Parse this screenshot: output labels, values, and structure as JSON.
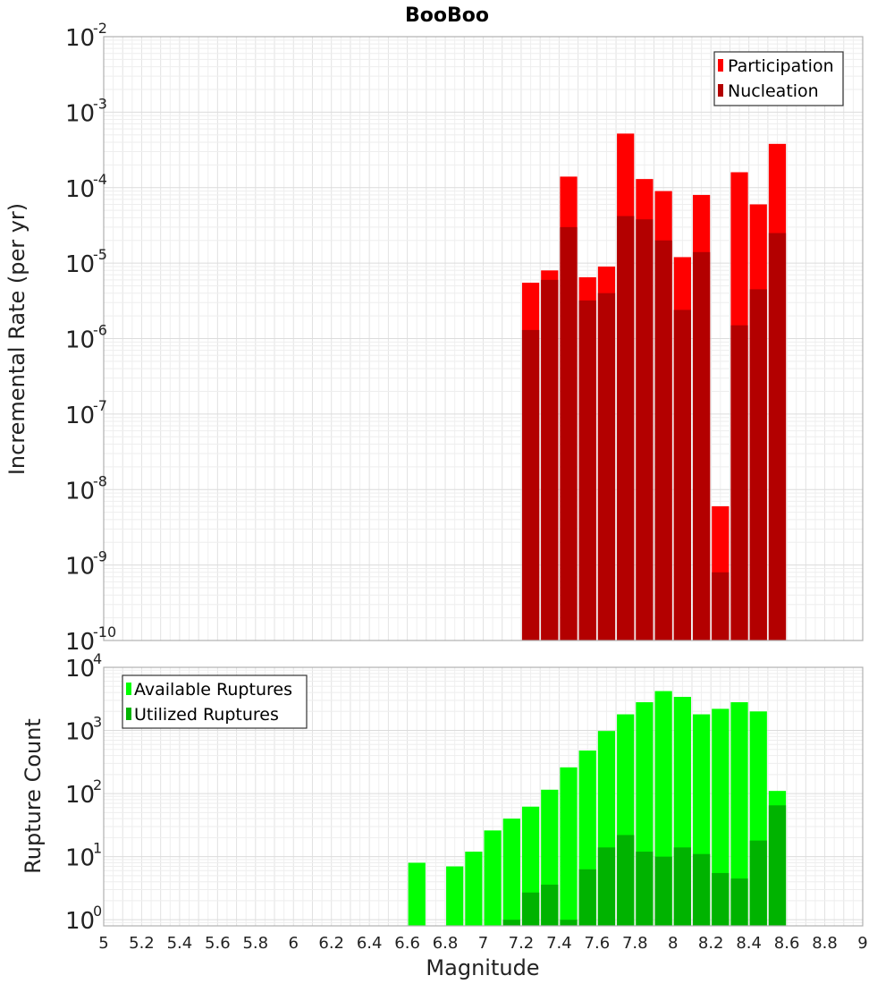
{
  "chart_data": [
    {
      "type": "bar",
      "title": "BooBoo",
      "ylabel": "Incremental Rate (per yr)",
      "xlabel": "",
      "yscale": "log",
      "ylim": [
        1e-10,
        0.01
      ],
      "xlim": [
        5,
        9
      ],
      "bin_width": 0.1,
      "legend_position": "top-right",
      "colors": {
        "Participation": "#ff0000",
        "Nucleation": "#b30000"
      },
      "x": [
        7.25,
        7.35,
        7.45,
        7.55,
        7.65,
        7.75,
        7.85,
        7.95,
        8.05,
        8.15,
        8.25,
        8.35,
        8.45,
        8.55
      ],
      "series": [
        {
          "name": "Participation",
          "values": [
            5.5e-06,
            8e-06,
            0.00014,
            6.5e-06,
            9e-06,
            0.00052,
            0.00013,
            9e-05,
            1.2e-05,
            8e-05,
            6e-09,
            0.00016,
            6e-05,
            0.00038
          ]
        },
        {
          "name": "Nucleation",
          "values": [
            1.3e-06,
            6e-06,
            3e-05,
            3.2e-06,
            4e-06,
            4.2e-05,
            3.8e-05,
            2e-05,
            2.4e-06,
            1.4e-05,
            8e-10,
            1.5e-06,
            4.5e-06,
            2.5e-05
          ]
        }
      ]
    },
    {
      "type": "bar",
      "ylabel": "Rupture Count",
      "xlabel": "Magnitude",
      "yscale": "log",
      "ylim": [
        0.8,
        10000
      ],
      "xlim": [
        5,
        9
      ],
      "bin_width": 0.1,
      "legend_position": "top-left",
      "xticks": [
        "5",
        "5.2",
        "5.4",
        "5.6",
        "5.8",
        "6",
        "6.2",
        "6.4",
        "6.6",
        "6.8",
        "7",
        "7.2",
        "7.4",
        "7.6",
        "7.8",
        "8",
        "8.2",
        "8.4",
        "8.6",
        "8.8",
        "9"
      ],
      "colors": {
        "Available Ruptures": "#00ff00",
        "Utilized Ruptures": "#00b300"
      },
      "x": [
        6.65,
        6.85,
        6.95,
        7.05,
        7.15,
        7.25,
        7.35,
        7.45,
        7.55,
        7.65,
        7.75,
        7.85,
        7.95,
        8.05,
        8.15,
        8.25,
        8.35,
        8.45,
        8.55
      ],
      "series": [
        {
          "name": "Available Ruptures",
          "values": [
            8,
            7,
            12,
            26,
            40,
            62,
            115,
            260,
            480,
            980,
            1800,
            2800,
            4200,
            3400,
            1800,
            2200,
            2800,
            2000,
            110
          ]
        },
        {
          "name": "Utilized Ruptures",
          "values": [
            0,
            0,
            0,
            0,
            1,
            2.7,
            3.6,
            1,
            6.3,
            14,
            22,
            12,
            10,
            14,
            11,
            5.5,
            4.5,
            18,
            65
          ]
        }
      ]
    }
  ]
}
